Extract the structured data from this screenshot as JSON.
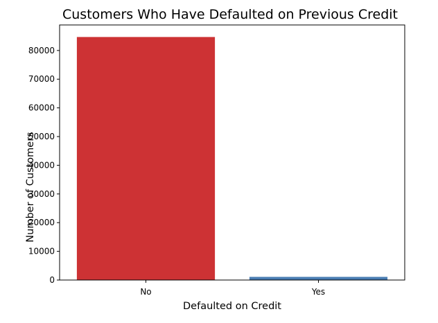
{
  "chart_data": {
    "type": "bar",
    "title": "Customers Who Have Defaulted on Previous Credit",
    "xlabel": "Defaulted on Credit",
    "ylabel": "Number of Customers",
    "categories": [
      "No",
      "Yes"
    ],
    "values": [
      84700,
      1100
    ],
    "colors": [
      "#cd3234",
      "#4a7db3"
    ],
    "ylim": [
      0,
      88900
    ],
    "yticks": [
      0,
      10000,
      20000,
      30000,
      40000,
      50000,
      60000,
      70000,
      80000
    ],
    "grid": false,
    "legend": "none"
  }
}
